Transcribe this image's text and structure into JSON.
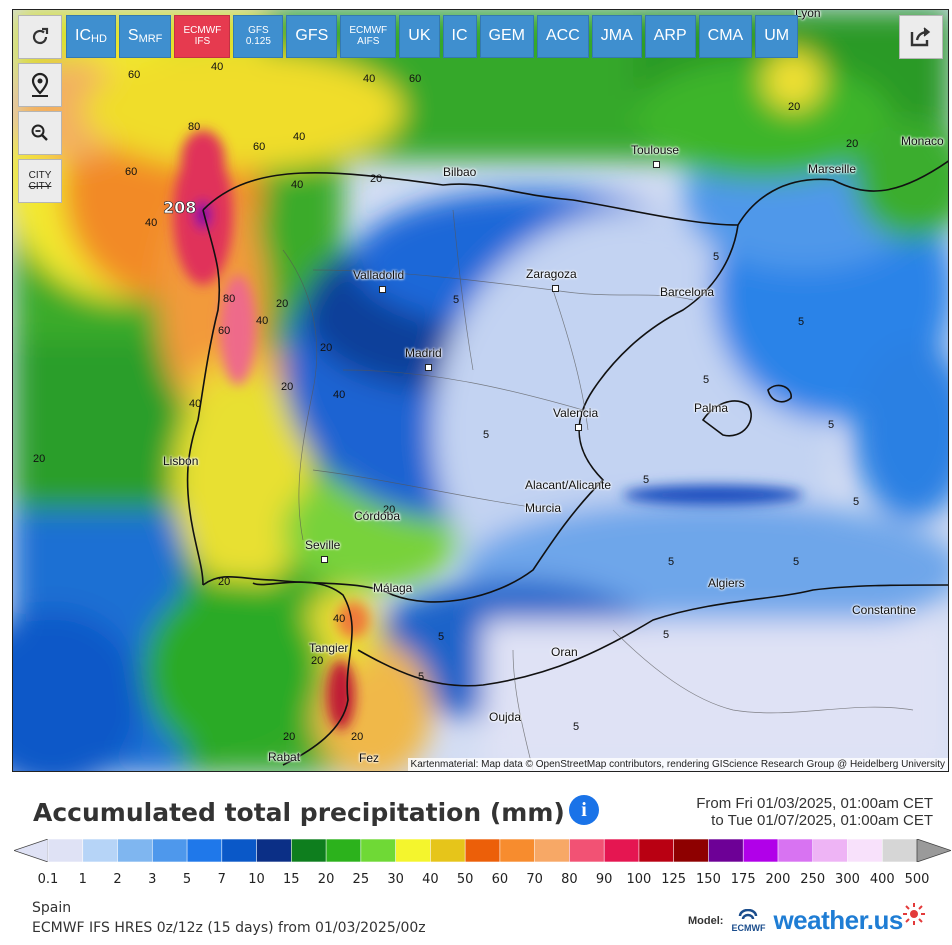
{
  "toolbar": {
    "refresh_icon": "refresh-icon",
    "models": [
      {
        "label": "ICHD",
        "main": "IC",
        "sub": "HD",
        "active": false
      },
      {
        "label": "SMRF",
        "main": "S",
        "sub": "MRF",
        "active": false
      },
      {
        "label": "ECMWF IFS",
        "line1": "ECMWF",
        "line2": "IFS",
        "active": true
      },
      {
        "label": "GFS 0.125",
        "line1": "GFS",
        "line2": "0.125",
        "active": false
      },
      {
        "label": "GFS",
        "active": false
      },
      {
        "label": "ECMWF AIFS",
        "line1": "ECMWF",
        "line2": "AIFS",
        "active": false
      },
      {
        "label": "UK",
        "active": false
      },
      {
        "label": "IC",
        "active": false
      },
      {
        "label": "GEM",
        "active": false
      },
      {
        "label": "ACC",
        "active": false
      },
      {
        "label": "JMA",
        "active": false
      },
      {
        "label": "ARP",
        "active": false
      },
      {
        "label": "CMA",
        "active": false
      },
      {
        "label": "UM",
        "active": false
      }
    ],
    "city_toggle_label": "CITY",
    "city_toggle_label_strike": "CITY"
  },
  "map": {
    "max_label": "208",
    "cities": [
      {
        "name": "Lyon"
      },
      {
        "name": "Toulouse"
      },
      {
        "name": "Monaco"
      },
      {
        "name": "Marseille"
      },
      {
        "name": "Bilbao"
      },
      {
        "name": "Valladolid"
      },
      {
        "name": "Zaragoza"
      },
      {
        "name": "Barcelona"
      },
      {
        "name": "Madrid"
      },
      {
        "name": "Palma"
      },
      {
        "name": "Valencia"
      },
      {
        "name": "Lisbon"
      },
      {
        "name": "Alacant/Alicante"
      },
      {
        "name": "Murcia"
      },
      {
        "name": "Córdoba"
      },
      {
        "name": "Seville"
      },
      {
        "name": "Málaga"
      },
      {
        "name": "Algiers"
      },
      {
        "name": "Constantine"
      },
      {
        "name": "Oran"
      },
      {
        "name": "Tangier"
      },
      {
        "name": "Oujda"
      },
      {
        "name": "Rabat"
      },
      {
        "name": "Fez"
      }
    ],
    "contour_labels": [
      "5",
      "20",
      "40",
      "60",
      "80"
    ],
    "attribution": "Kartenmaterial: Map data © OpenStreetMap contributors, rendering GIScience Research Group @ Heidelberg University"
  },
  "legend": {
    "title": "Accumulated total precipitation (mm)",
    "info_icon": "info-icon",
    "period_from": "From Fri 01/03/2025, 01:00am CET",
    "period_to": "to Tue 01/07/2025, 01:00am CET",
    "values": [
      "0.1",
      "1",
      "2",
      "3",
      "5",
      "7",
      "10",
      "15",
      "20",
      "25",
      "30",
      "40",
      "50",
      "60",
      "70",
      "80",
      "90",
      "100",
      "125",
      "150",
      "175",
      "200",
      "250",
      "300",
      "400",
      "500"
    ],
    "colors": [
      "#dfe2f5",
      "#b6d4f7",
      "#7fb6f0",
      "#4e98ec",
      "#1f78ea",
      "#0a58c8",
      "#0b2f86",
      "#0e7e1e",
      "#2cb21c",
      "#6fd936",
      "#f4f52d",
      "#e6c51a",
      "#ec5f09",
      "#f78c2e",
      "#f7a866",
      "#f25274",
      "#e51651",
      "#b90012",
      "#8e0000",
      "#6d0096",
      "#b100e9",
      "#d873f2",
      "#eeb4f5",
      "#f8e1fb",
      "#d6d6d6",
      "#9a9a9a"
    ]
  },
  "footer": {
    "region": "Spain",
    "model_run": "ECMWF IFS HRES 0z/12z (15 days) from 01/03/2025/00z",
    "model_label": "Model:",
    "ecmwf_label": "ECMWF",
    "brand": "weather.us"
  }
}
